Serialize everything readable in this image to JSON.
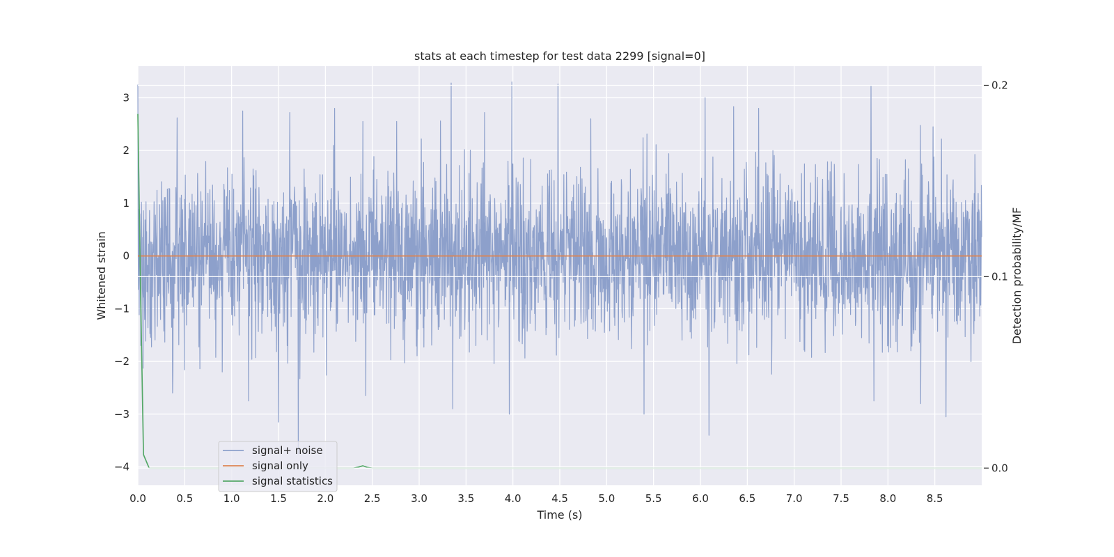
{
  "chart_data": {
    "type": "line",
    "title": "stats at each timestep for test data 2299 [signal=0]",
    "xlabel": "Time (s)",
    "ylabel": "Whitened strain",
    "y2label": "Detection probability/MF",
    "xlim": [
      0,
      9.0
    ],
    "ylim": [
      -4.35,
      3.6
    ],
    "y2lim": [
      -0.009,
      0.21
    ],
    "x_ticks": [
      0.0,
      0.5,
      1.0,
      1.5,
      2.0,
      2.5,
      3.0,
      3.5,
      4.0,
      4.5,
      5.0,
      5.5,
      6.0,
      6.5,
      7.0,
      7.5,
      8.0,
      8.5
    ],
    "x_tick_labels": [
      "0.0",
      "0.5",
      "1.0",
      "1.5",
      "2.0",
      "2.5",
      "3.0",
      "3.5",
      "4.0",
      "4.5",
      "5.0",
      "5.5",
      "6.0",
      "6.5",
      "7.0",
      "7.5",
      "8.0",
      "8.5"
    ],
    "y_ticks": [
      -4,
      -3,
      -2,
      -1,
      0,
      1,
      2,
      3
    ],
    "y_tick_labels": [
      "−4",
      "−3",
      "−2",
      "−1",
      "0",
      "1",
      "2",
      "3"
    ],
    "y2_ticks": [
      0.0,
      0.1,
      0.2
    ],
    "y2_tick_labels": [
      "0.0",
      "0.1",
      "0.2"
    ],
    "grid": true,
    "legend_position": "bottom-left",
    "background_color": "#eaeaf2",
    "series": [
      {
        "name": "signal+ noise",
        "axis": "left",
        "color": "#8da0cb",
        "style": "dense-noise",
        "duration": 9.0,
        "std": 0.8,
        "peaks_high": [
          [
            0.0,
            3.25
          ],
          [
            0.42,
            2.62
          ],
          [
            1.12,
            2.75
          ],
          [
            1.62,
            2.72
          ],
          [
            2.1,
            2.8
          ],
          [
            2.4,
            2.55
          ],
          [
            2.76,
            2.55
          ],
          [
            3.34,
            3.28
          ],
          [
            3.7,
            2.72
          ],
          [
            3.99,
            3.3
          ],
          [
            4.48,
            3.26
          ],
          [
            4.83,
            2.6
          ],
          [
            6.05,
            3.0
          ],
          [
            6.62,
            2.8
          ],
          [
            7.82,
            3.22
          ],
          [
            8.48,
            2.45
          ]
        ],
        "peaks_low": [
          [
            0.03,
            -1.7
          ],
          [
            0.37,
            -2.6
          ],
          [
            0.9,
            -2.2
          ],
          [
            1.18,
            -2.75
          ],
          [
            1.5,
            -3.15
          ],
          [
            1.71,
            -3.75
          ],
          [
            2.43,
            -2.65
          ],
          [
            3.36,
            -2.9
          ],
          [
            3.96,
            -3.0
          ],
          [
            5.4,
            -3.0
          ],
          [
            6.09,
            -3.4
          ],
          [
            7.85,
            -2.75
          ],
          [
            8.35,
            -2.8
          ],
          [
            8.62,
            -3.05
          ]
        ]
      },
      {
        "name": "signal only",
        "axis": "left",
        "color": "#dd8452",
        "x": [
          0.0,
          9.0
        ],
        "y": [
          0.0,
          0.0
        ]
      },
      {
        "name": "signal statistics",
        "axis": "right",
        "color": "#55a868",
        "x": [
          0.0,
          0.03,
          0.06,
          0.12,
          0.5,
          1.0,
          1.5,
          2.0,
          2.3,
          2.35,
          2.4,
          2.45,
          2.5,
          3.0,
          4.0,
          5.0,
          6.0,
          7.0,
          8.0,
          9.0
        ],
        "y": [
          0.185,
          0.09,
          0.007,
          0.0,
          0.0,
          0.0,
          0.0,
          0.0,
          0.0,
          0.0005,
          0.0012,
          0.0003,
          0.0,
          0.0,
          0.0,
          0.0,
          0.0,
          0.0,
          0.0,
          0.0
        ]
      }
    ]
  }
}
